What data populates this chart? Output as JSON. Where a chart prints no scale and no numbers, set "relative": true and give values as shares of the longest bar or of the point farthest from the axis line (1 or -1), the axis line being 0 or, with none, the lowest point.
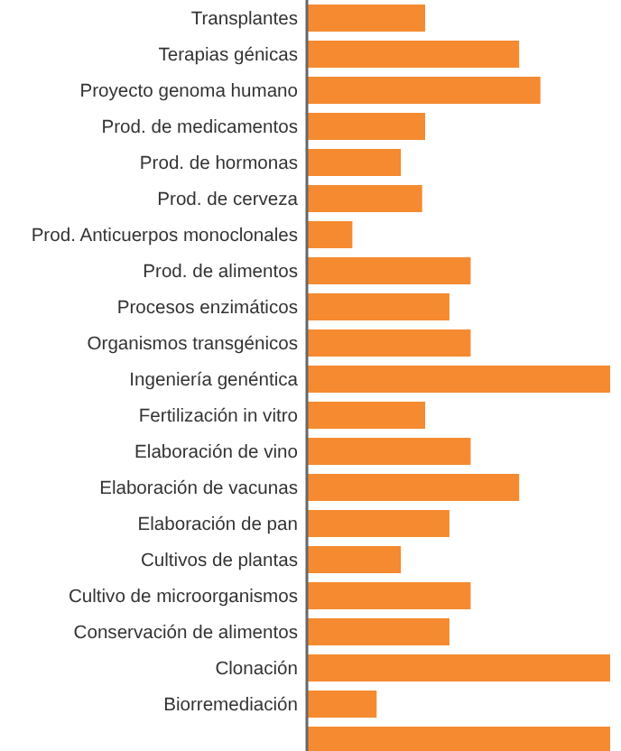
{
  "chart_data": {
    "type": "bar",
    "orientation": "horizontal",
    "relative": true,
    "color": "#f58a30",
    "categories": [
      "Transplantes",
      "Terapias génicas",
      "Proyecto genoma humano",
      "Prod. de medicamentos",
      "Prod. de hormonas",
      "Prod. de cerveza",
      "Prod. Anticuerpos monoclonales",
      "Prod. de alimentos",
      "Procesos enzimáticos",
      "Organismos transgénicos",
      "Ingeniería genéntica",
      "Fertilización in vitro",
      "Elaboración de vino",
      "Elaboración de vacunas",
      "Elaboración de pan",
      "Cultivos de plantas",
      "Cultivo de microorganismos",
      "Conservación de alimentos",
      "Clonación",
      "Biorremediación",
      null
    ],
    "values": [
      0.39,
      0.7,
      0.77,
      0.39,
      0.31,
      0.38,
      0.15,
      0.54,
      0.47,
      0.54,
      1,
      0.39,
      0.54,
      0.7,
      0.47,
      0.31,
      0.54,
      0.47,
      1,
      0.23,
      1
    ]
  }
}
